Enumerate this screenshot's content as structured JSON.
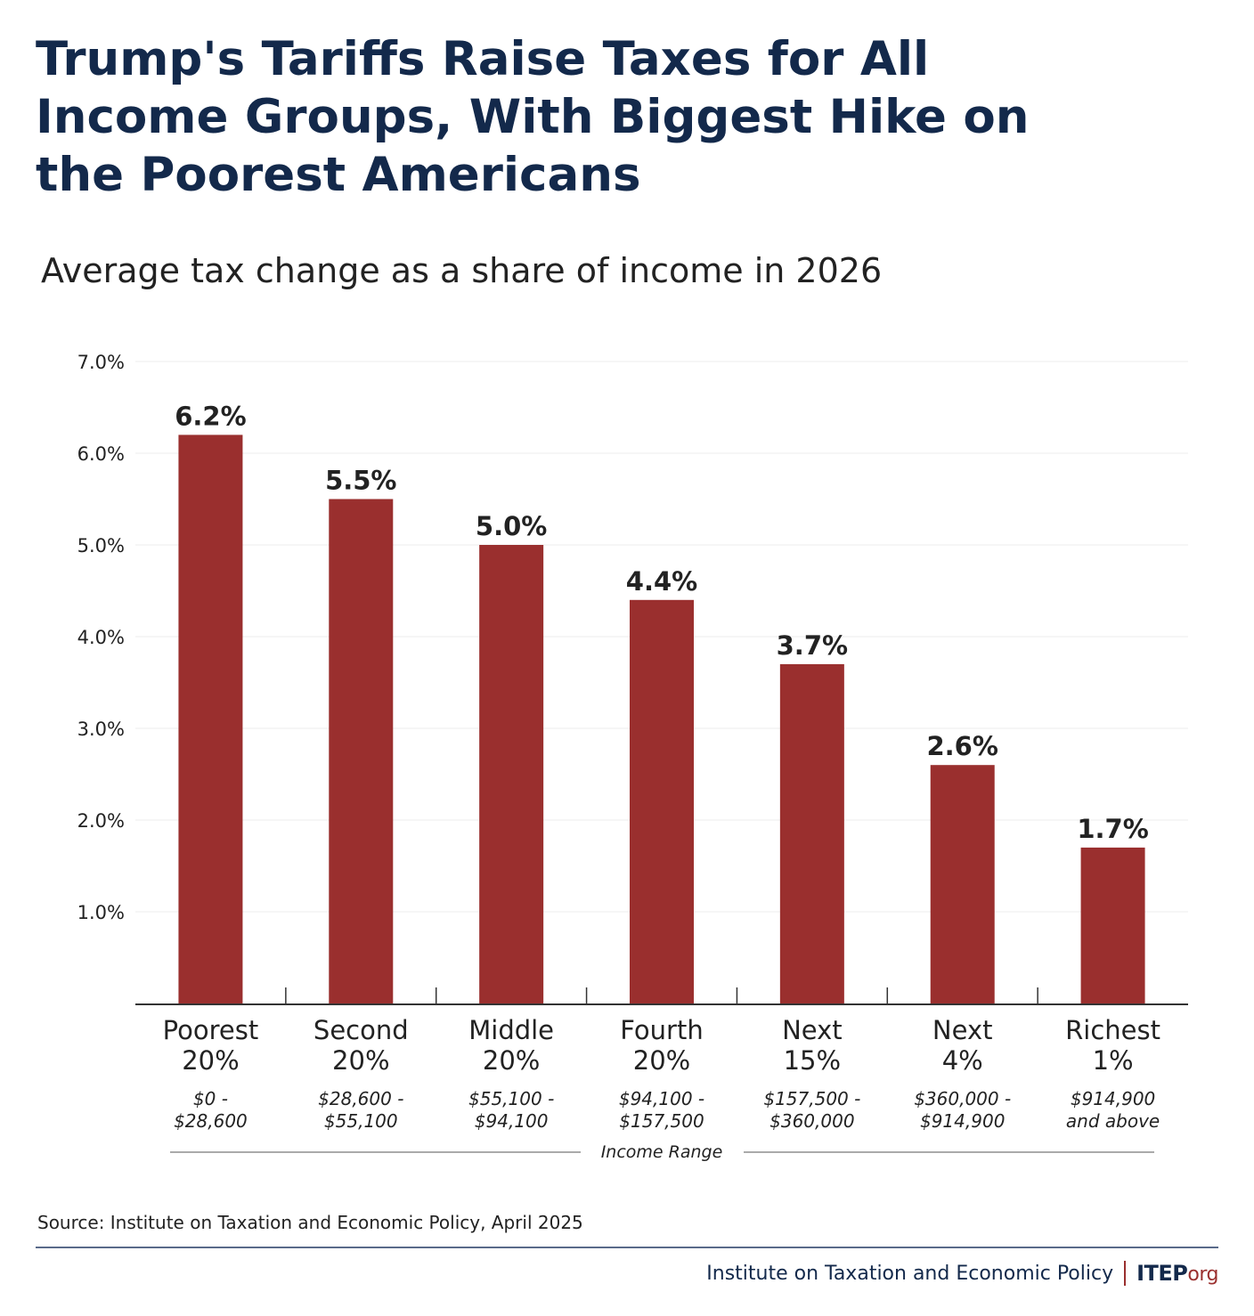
{
  "title": "Trump's Tariffs Raise Taxes for All Income Groups, With Biggest Hike on the Poorest Americans",
  "subtitle": "Average tax change as a share of income in 2026",
  "chart_data": {
    "type": "bar",
    "categories": [
      [
        "Poorest",
        "20%"
      ],
      [
        "Second",
        "20%"
      ],
      [
        "Middle",
        "20%"
      ],
      [
        "Fourth",
        "20%"
      ],
      [
        "Next",
        "15%"
      ],
      [
        "Next",
        "4%"
      ],
      [
        "Richest",
        "1%"
      ]
    ],
    "income_ranges": [
      [
        "$0 -",
        "$28,600"
      ],
      [
        "$28,600 -",
        "$55,100"
      ],
      [
        "$55,100 -",
        "$94,100"
      ],
      [
        "$94,100 -",
        "$157,500"
      ],
      [
        "$157,500 -",
        "$360,000"
      ],
      [
        "$360,000 -",
        "$914,900"
      ],
      [
        "$914,900",
        "and above"
      ]
    ],
    "values": [
      6.2,
      5.5,
      5.0,
      4.4,
      3.7,
      2.6,
      1.7
    ],
    "value_labels": [
      "6.2%",
      "5.5%",
      "5.0%",
      "4.4%",
      "3.7%",
      "2.6%",
      "1.7%"
    ],
    "yticks": [
      1,
      2,
      3,
      4,
      5,
      6,
      7
    ],
    "ytick_labels": [
      "1.0%",
      "2.0%",
      "3.0%",
      "4.0%",
      "5.0%",
      "6.0%",
      "7.0%"
    ],
    "ylim": [
      0,
      7
    ],
    "xlabel": "Income Range",
    "ylabel": "",
    "grid": true,
    "bar_color": "#9a2f2e"
  },
  "source": "Source: Institute on Taxation and Economic Policy, April 2025",
  "footer": {
    "org_name": "Institute on Taxation and Economic Policy",
    "logo_main": "ITEP",
    "logo_suffix": "org"
  },
  "colors": {
    "title": "#13294b",
    "bar": "#9a2f2e",
    "grid": "#ececec"
  }
}
